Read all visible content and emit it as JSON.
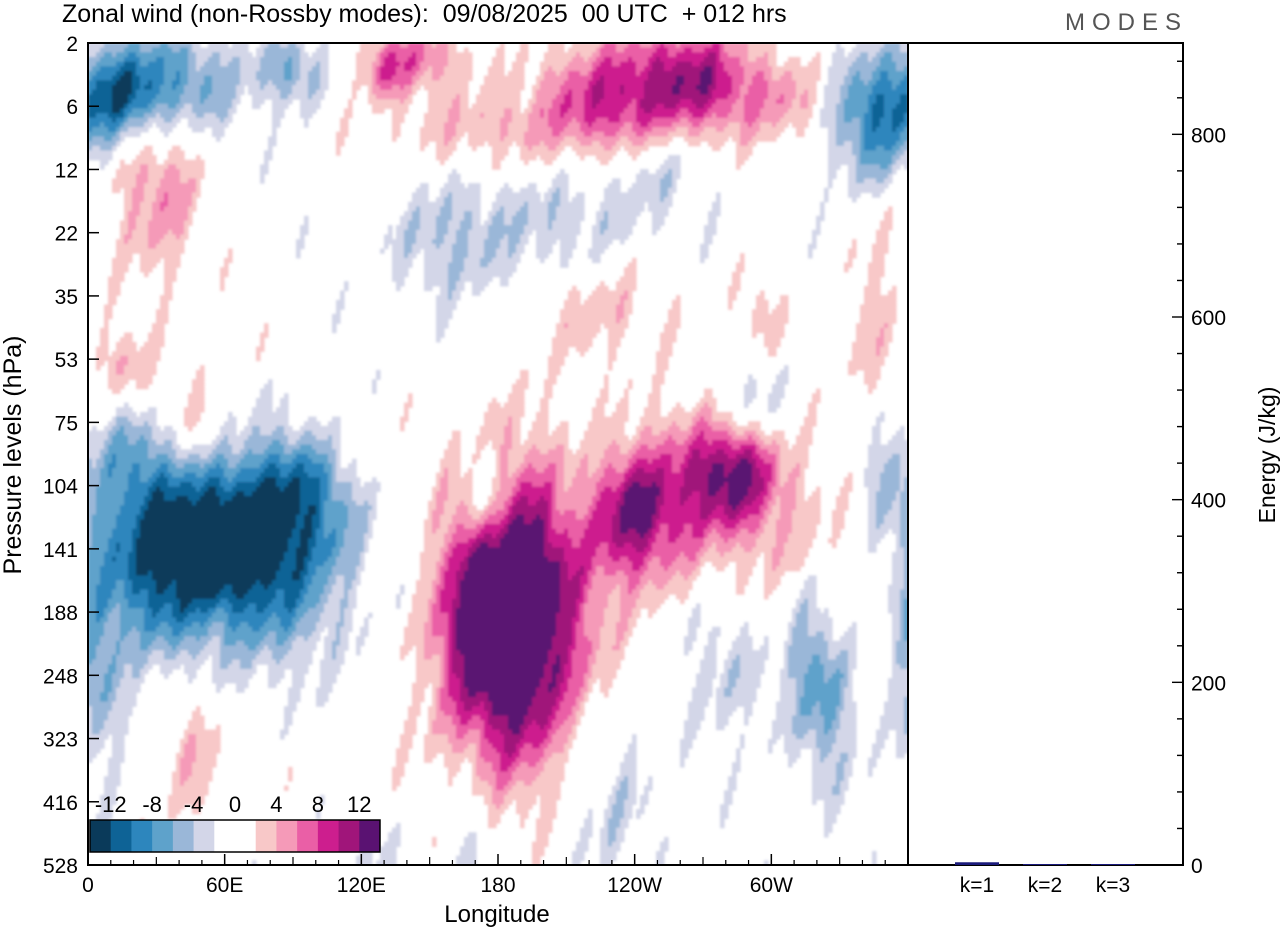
{
  "header": {
    "title": "Zonal wind (non-Rossby modes):  09/08/2025  00 UTC  + 012 hrs",
    "brand": "MODES"
  },
  "chart_data": [
    {
      "type": "heatmap",
      "title": "Zonal wind (non-Rossby modes)",
      "xlabel": "Longitude",
      "ylabel": "Pressure levels (hPa)",
      "x_ticks": [
        "0",
        "60E",
        "120E",
        "180",
        "120W",
        "60W"
      ],
      "x_tick_degrees": [
        0,
        60,
        120,
        180,
        240,
        300
      ],
      "xlim": [
        0,
        360
      ],
      "y_ticks": [
        "2",
        "6",
        "12",
        "22",
        "35",
        "53",
        "75",
        "104",
        "141",
        "188",
        "248",
        "323",
        "416",
        "528"
      ],
      "colorbar": {
        "labels": [
          "-12",
          "-8",
          "-4",
          "0",
          "4",
          "8",
          "12"
        ],
        "levels": [
          -14,
          -12,
          -10,
          -8,
          -6,
          -4,
          -2,
          0,
          2,
          4,
          6,
          8,
          10,
          12,
          14
        ],
        "colors": [
          "#0a3a5a",
          "#0e6396",
          "#2d86bd",
          "#5ea2cb",
          "#9ab7d8",
          "#d3d6e8",
          "#ffffff",
          "#ffffff",
          "#f8c8c8",
          "#f59ab8",
          "#ea5fa6",
          "#cd1e8e",
          "#a0157a",
          "#5a1272"
        ]
      },
      "features": [
        {
          "name": "easterly jet lower stratosphere",
          "lon": 55,
          "level": 141,
          "value": -13
        },
        {
          "name": "westerly maximum dateline",
          "lon": 188,
          "level": 188,
          "value": 11
        },
        {
          "name": "westerly maximum",
          "lon": 238,
          "level": 120,
          "value": 10
        },
        {
          "name": "westerly maximum",
          "lon": 285,
          "level": 95,
          "value": 11
        },
        {
          "name": "easterly band upper",
          "lon": 35,
          "level": 4,
          "value": -9
        },
        {
          "name": "westerly band upper",
          "lon": 260,
          "level": 4,
          "value": 11
        },
        {
          "name": "easterly patch",
          "lon": 335,
          "level": 8,
          "value": -8
        },
        {
          "name": "easterly patch",
          "lon": 330,
          "level": 248,
          "value": -6
        }
      ]
    },
    {
      "type": "bar",
      "ylabel": "Energy (J/kg)",
      "categories": [
        "k=1",
        "k=2",
        "k=3"
      ],
      "values": [
        3,
        1,
        0.5
      ],
      "ylim": [
        0,
        900
      ],
      "y_ticks": [
        0,
        200,
        400,
        600,
        800
      ],
      "bar_color": "#1a1a7a"
    }
  ]
}
